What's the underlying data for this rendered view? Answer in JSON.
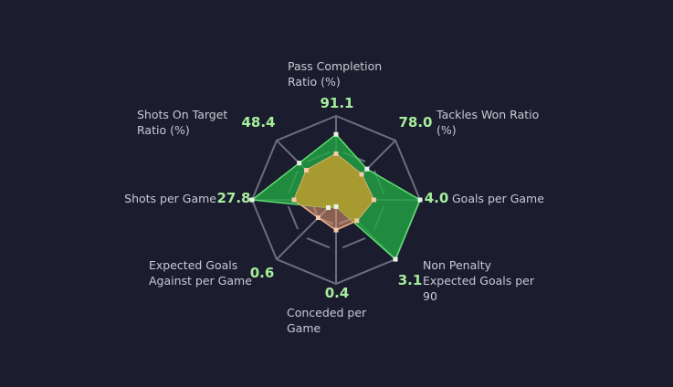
{
  "chart_data": {
    "type": "radar",
    "axes": [
      {
        "label_lines": [
          "Pass Completion",
          "Ratio (%)"
        ],
        "value_text": "91.1"
      },
      {
        "label_lines": [
          "Tackles Won Ratio",
          "(%)"
        ],
        "value_text": "78.0"
      },
      {
        "label_lines": [
          "Goals per Game"
        ],
        "value_text": "4.0"
      },
      {
        "label_lines": [
          "Non Penalty",
          "Expected Goals per",
          "90"
        ],
        "value_text": "3.1"
      },
      {
        "label_lines": [
          "Conceded per",
          "Game"
        ],
        "value_text": "0.4"
      },
      {
        "label_lines": [
          "Expected Goals",
          "Against per Game"
        ],
        "value_text": "0.6"
      },
      {
        "label_lines": [
          "Shots per Game"
        ],
        "value_text": "27.8"
      },
      {
        "label_lines": [
          "Shots On Target",
          "Ratio (%)"
        ],
        "value_text": "48.4"
      }
    ],
    "series": [
      {
        "color": "#22a843",
        "values": [
          0.78,
          0.52,
          1.0,
          1.0,
          0.08,
          0.13,
          1.0,
          0.62
        ]
      },
      {
        "color": "#e59a6f",
        "values": [
          0.55,
          0.43,
          0.45,
          0.35,
          0.36,
          0.3,
          0.5,
          0.5
        ]
      }
    ],
    "rlim": [
      0,
      1
    ],
    "grid": "octagon"
  },
  "colors": {
    "background": "#1b1c2e",
    "grid": "#6b6c80",
    "label_text": "#c9cad3",
    "value_text": "#a6ee9c",
    "overlap_fill": "#a89a2e"
  }
}
